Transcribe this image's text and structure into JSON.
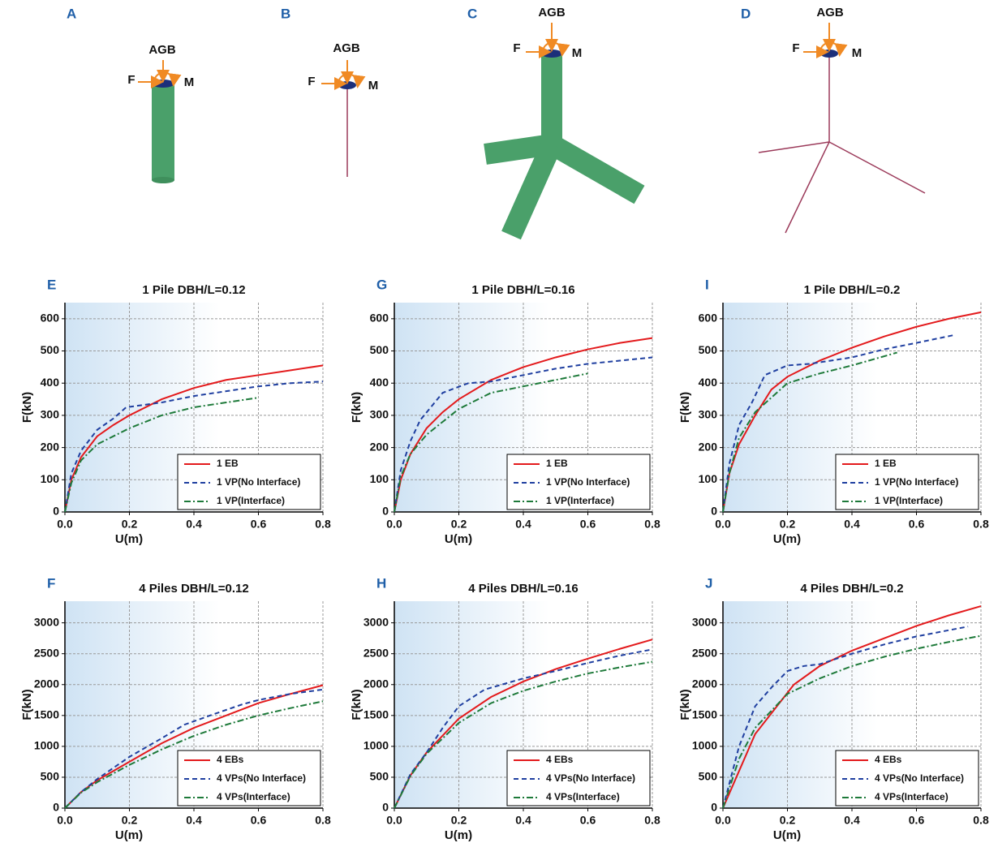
{
  "diagrams": [
    {
      "panel": "A",
      "labels": [
        "AGB",
        "F",
        "M"
      ]
    },
    {
      "panel": "B",
      "labels": [
        "AGB",
        "F",
        "M"
      ]
    },
    {
      "panel": "C",
      "labels": [
        "AGB",
        "F",
        "M"
      ]
    },
    {
      "panel": "D",
      "labels": [
        "AGB",
        "F",
        "M"
      ]
    }
  ],
  "chart_data": [
    {
      "type": "line",
      "panel": "E",
      "title": "1 Pile DBH/L=0.12",
      "xlabel": "U(m)",
      "ylabel": "F(kN)",
      "xlim": [
        0,
        0.8
      ],
      "xticks": [
        {
          "value": 0,
          "label": "0.0"
        },
        0.2,
        0.4,
        0.6,
        0.8
      ],
      "ylim": [
        0,
        650
      ],
      "yticks": [
        0,
        100,
        200,
        300,
        400,
        500,
        600
      ],
      "grid": true,
      "legend": "lower right",
      "series": [
        {
          "name": "1 EB",
          "color": "#e31a1c",
          "linestyle": "solid",
          "x": [
            0,
            0.02,
            0.05,
            0.1,
            0.15,
            0.2,
            0.3,
            0.4,
            0.5,
            0.6,
            0.7,
            0.8
          ],
          "values": [
            0,
            100,
            170,
            235,
            270,
            300,
            350,
            385,
            410,
            425,
            440,
            455
          ]
        },
        {
          "name": "1 VP(No Interface)",
          "color": "#1f3fa0",
          "linestyle": "dashed",
          "x": [
            0,
            0.02,
            0.05,
            0.1,
            0.15,
            0.19,
            0.3,
            0.4,
            0.5,
            0.6,
            0.7,
            0.8
          ],
          "values": [
            0,
            120,
            190,
            255,
            290,
            325,
            340,
            360,
            375,
            390,
            400,
            405
          ]
        },
        {
          "name": "1 VP(Interface)",
          "color": "#1e7a3a",
          "linestyle": "dashdot",
          "x": [
            0,
            0.02,
            0.05,
            0.1,
            0.2,
            0.3,
            0.4,
            0.5,
            0.6
          ],
          "values": [
            0,
            90,
            160,
            210,
            260,
            300,
            325,
            340,
            355
          ]
        }
      ]
    },
    {
      "type": "line",
      "panel": "G",
      "title": "1 Pile DBH/L=0.16",
      "xlabel": "U(m)",
      "ylabel": "F(kN)",
      "xlim": [
        0,
        0.8
      ],
      "xticks": [
        {
          "value": 0,
          "label": "0.0"
        },
        0.2,
        0.4,
        0.6,
        0.8
      ],
      "ylim": [
        0,
        650
      ],
      "yticks": [
        0,
        100,
        200,
        300,
        400,
        500,
        600
      ],
      "grid": true,
      "legend": "lower right",
      "series": [
        {
          "name": "1 EB",
          "color": "#e31a1c",
          "linestyle": "solid",
          "x": [
            0,
            0.02,
            0.05,
            0.1,
            0.15,
            0.2,
            0.3,
            0.4,
            0.5,
            0.6,
            0.7,
            0.8
          ],
          "values": [
            0,
            100,
            180,
            260,
            310,
            350,
            410,
            450,
            480,
            505,
            525,
            540
          ]
        },
        {
          "name": "1 VP(No Interface)",
          "color": "#1f3fa0",
          "linestyle": "dashed",
          "x": [
            0,
            0.02,
            0.05,
            0.08,
            0.15,
            0.23,
            0.3,
            0.4,
            0.5,
            0.6,
            0.7,
            0.8
          ],
          "values": [
            0,
            130,
            220,
            285,
            370,
            400,
            405,
            425,
            445,
            460,
            470,
            480
          ]
        },
        {
          "name": "1 VP(Interface)",
          "color": "#1e7a3a",
          "linestyle": "dashdot",
          "x": [
            0,
            0.02,
            0.05,
            0.1,
            0.2,
            0.3,
            0.4,
            0.5,
            0.6
          ],
          "values": [
            0,
            110,
            180,
            240,
            320,
            370,
            390,
            410,
            430
          ]
        }
      ]
    },
    {
      "type": "line",
      "panel": "I",
      "title": "1 Pile DBH/L=0.2",
      "xlabel": "U(m)",
      "ylabel": "F(kN)",
      "xlim": [
        0,
        0.8
      ],
      "xticks": [
        {
          "value": 0,
          "label": "0.0"
        },
        0.2,
        0.4,
        0.6,
        0.8
      ],
      "ylim": [
        0,
        650
      ],
      "yticks": [
        0,
        100,
        200,
        300,
        400,
        500,
        600
      ],
      "grid": true,
      "legend": "lower right",
      "series": [
        {
          "name": "1 EB",
          "color": "#e31a1c",
          "linestyle": "solid",
          "x": [
            0,
            0.02,
            0.05,
            0.1,
            0.15,
            0.2,
            0.3,
            0.4,
            0.5,
            0.6,
            0.7,
            0.8
          ],
          "values": [
            0,
            120,
            210,
            300,
            380,
            420,
            470,
            510,
            545,
            575,
            600,
            620
          ]
        },
        {
          "name": "1 VP(No Interface)",
          "color": "#1f3fa0",
          "linestyle": "dashed",
          "x": [
            0,
            0.02,
            0.05,
            0.09,
            0.13,
            0.2,
            0.27,
            0.4,
            0.5,
            0.6,
            0.72
          ],
          "values": [
            0,
            150,
            270,
            340,
            425,
            455,
            460,
            480,
            505,
            525,
            550
          ]
        },
        {
          "name": "1 VP(Interface)",
          "color": "#1e7a3a",
          "linestyle": "dashdot",
          "x": [
            0,
            0.02,
            0.05,
            0.1,
            0.2,
            0.3,
            0.4,
            0.54
          ],
          "values": [
            0,
            120,
            230,
            310,
            400,
            430,
            455,
            495
          ]
        }
      ]
    },
    {
      "type": "line",
      "panel": "F",
      "title": "4 Piles DBH/L=0.12",
      "xlabel": "U(m)",
      "ylabel": "F(kN)",
      "xlim": [
        0,
        0.8
      ],
      "xticks": [
        {
          "value": 0,
          "label": "0.0"
        },
        0.2,
        0.4,
        0.6,
        0.8
      ],
      "ylim": [
        0,
        3350
      ],
      "yticks": [
        0,
        500,
        1000,
        1500,
        2000,
        2500,
        3000
      ],
      "grid": true,
      "legend": "lower right",
      "series": [
        {
          "name": "4 EBs",
          "color": "#e31a1c",
          "linestyle": "solid",
          "x": [
            0,
            0.05,
            0.1,
            0.2,
            0.3,
            0.4,
            0.5,
            0.6,
            0.7,
            0.8
          ],
          "values": [
            0,
            260,
            450,
            750,
            1050,
            1300,
            1500,
            1700,
            1850,
            1990
          ]
        },
        {
          "name": "4 VPs(No Interface)",
          "color": "#1f3fa0",
          "linestyle": "dashed",
          "x": [
            0,
            0.05,
            0.1,
            0.2,
            0.3,
            0.37,
            0.45,
            0.55,
            0.6,
            0.7,
            0.8
          ],
          "values": [
            0,
            260,
            470,
            830,
            1130,
            1350,
            1500,
            1680,
            1750,
            1850,
            1920
          ]
        },
        {
          "name": "4 VPs(Interface)",
          "color": "#1e7a3a",
          "linestyle": "dashdot",
          "x": [
            0,
            0.05,
            0.1,
            0.2,
            0.3,
            0.4,
            0.5,
            0.6,
            0.7,
            0.8
          ],
          "values": [
            0,
            250,
            420,
            700,
            950,
            1170,
            1350,
            1500,
            1620,
            1730
          ]
        }
      ]
    },
    {
      "type": "line",
      "panel": "H",
      "title": "4 Piles DBH/L=0.16",
      "xlabel": "U(m)",
      "ylabel": "F(kN)",
      "xlim": [
        0,
        0.8
      ],
      "xticks": [
        {
          "value": 0,
          "label": "0.0"
        },
        0.2,
        0.4,
        0.6,
        0.8
      ],
      "ylim": [
        0,
        3350
      ],
      "yticks": [
        0,
        500,
        1000,
        1500,
        2000,
        2500,
        3000
      ],
      "grid": true,
      "legend": "lower right",
      "series": [
        {
          "name": "4 EBs",
          "color": "#e31a1c",
          "linestyle": "solid",
          "x": [
            0,
            0.05,
            0.1,
            0.2,
            0.3,
            0.4,
            0.5,
            0.6,
            0.7,
            0.8
          ],
          "values": [
            0,
            530,
            900,
            1450,
            1800,
            2050,
            2250,
            2420,
            2580,
            2730
          ]
        },
        {
          "name": "4 VPs(No Interface)",
          "color": "#1f3fa0",
          "linestyle": "dashed",
          "x": [
            0,
            0.05,
            0.1,
            0.15,
            0.2,
            0.28,
            0.4,
            0.5,
            0.6,
            0.7,
            0.8
          ],
          "values": [
            0,
            550,
            900,
            1300,
            1650,
            1920,
            2100,
            2220,
            2350,
            2470,
            2570
          ]
        },
        {
          "name": "4 VPs(Interface)",
          "color": "#1e7a3a",
          "linestyle": "dashdot",
          "x": [
            0,
            0.05,
            0.1,
            0.2,
            0.3,
            0.4,
            0.5,
            0.6,
            0.7,
            0.8
          ],
          "values": [
            0,
            520,
            880,
            1380,
            1700,
            1900,
            2050,
            2180,
            2280,
            2370
          ]
        }
      ]
    },
    {
      "type": "line",
      "panel": "J",
      "title": "4 Piles DBH/L=0.2",
      "xlabel": "U(m)",
      "ylabel": "F(kN)",
      "xlim": [
        0,
        0.8
      ],
      "xticks": [
        {
          "value": 0,
          "label": "0.0"
        },
        0.2,
        0.4,
        0.6,
        0.8
      ],
      "ylim": [
        0,
        3350
      ],
      "yticks": [
        0,
        500,
        1000,
        1500,
        2000,
        2500,
        3000
      ],
      "grid": true,
      "legend": "lower right",
      "series": [
        {
          "name": "4 EBs",
          "color": "#e31a1c",
          "linestyle": "solid",
          "x": [
            0,
            0.05,
            0.1,
            0.22,
            0.3,
            0.4,
            0.5,
            0.6,
            0.7,
            0.8
          ],
          "values": [
            0,
            600,
            1200,
            2000,
            2300,
            2550,
            2750,
            2950,
            3120,
            3270
          ]
        },
        {
          "name": "4 VPs(No Interface)",
          "color": "#1f3fa0",
          "linestyle": "dashed",
          "x": [
            0,
            0.05,
            0.1,
            0.15,
            0.2,
            0.25,
            0.3,
            0.4,
            0.5,
            0.6,
            0.76
          ],
          "values": [
            0,
            1000,
            1650,
            1950,
            2220,
            2300,
            2330,
            2500,
            2650,
            2780,
            2940
          ]
        },
        {
          "name": "4 VPs(Interface)",
          "color": "#1e7a3a",
          "linestyle": "dashdot",
          "x": [
            0,
            0.05,
            0.1,
            0.2,
            0.3,
            0.4,
            0.5,
            0.6,
            0.7,
            0.8
          ],
          "values": [
            0,
            800,
            1300,
            1850,
            2100,
            2300,
            2450,
            2580,
            2690,
            2790
          ]
        }
      ]
    }
  ]
}
